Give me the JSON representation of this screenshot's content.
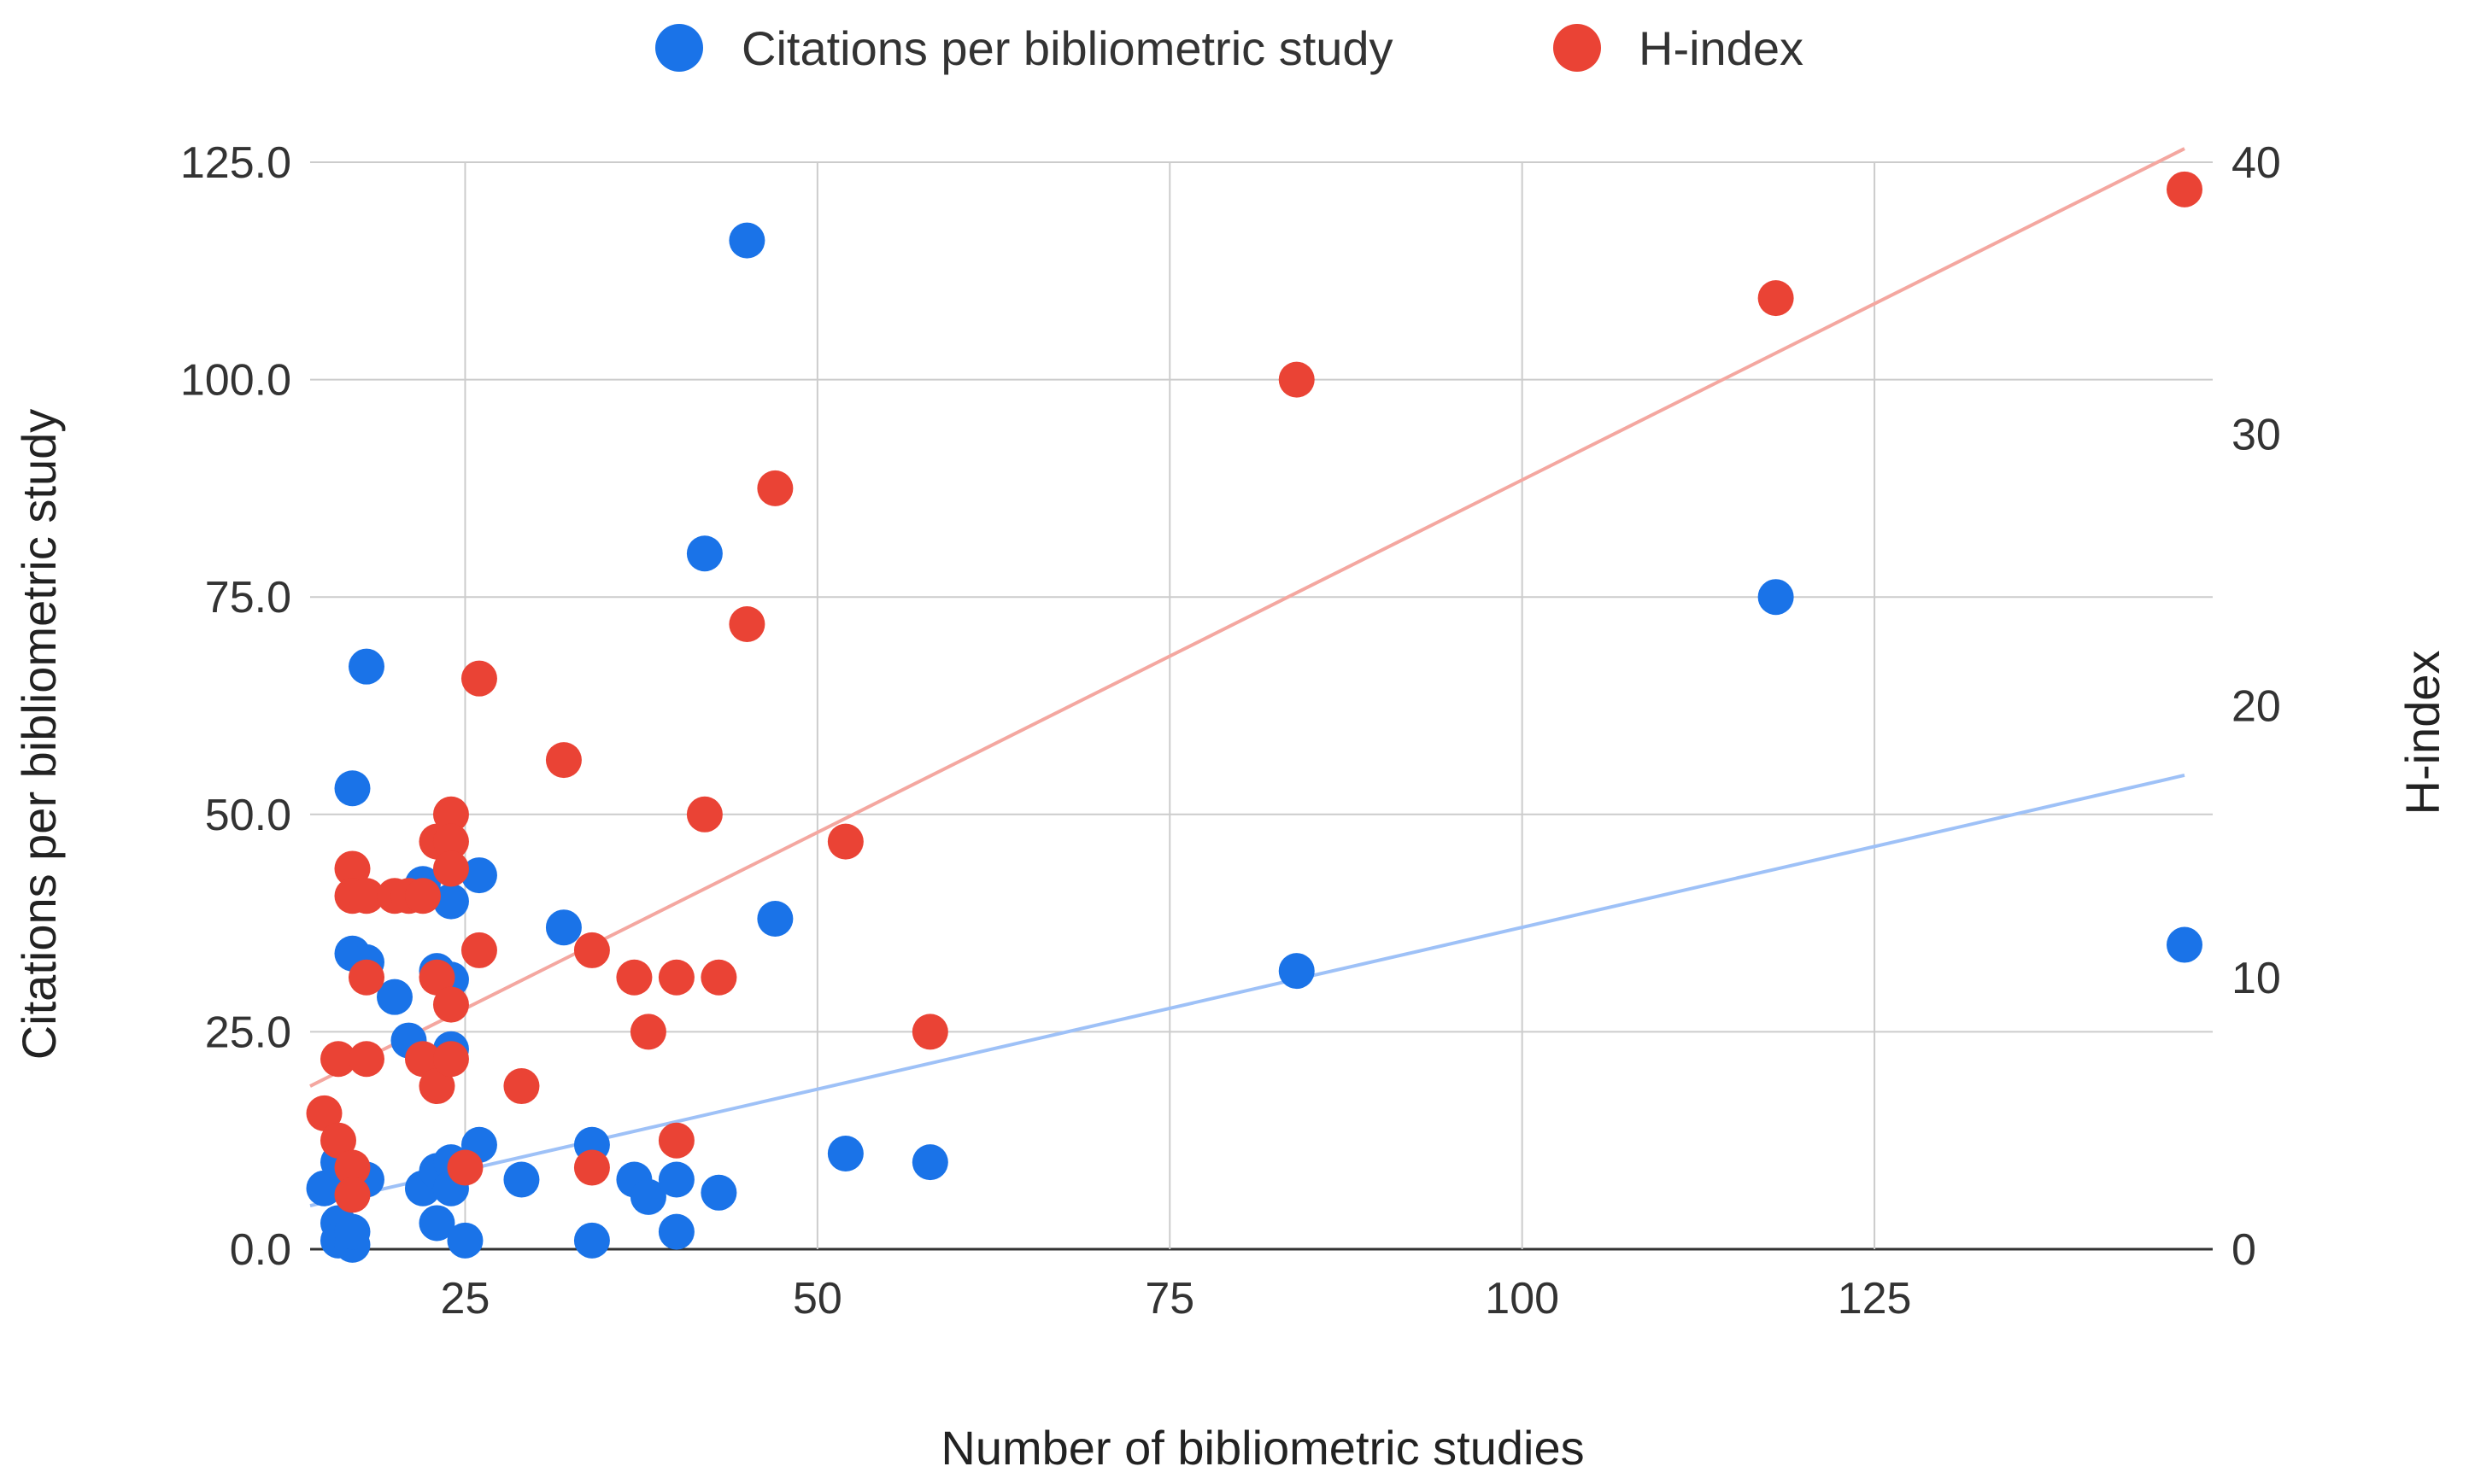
{
  "chart_data": {
    "type": "scatter",
    "title": "",
    "xlabel": "Number of bibliometric studies",
    "ylabel_left": "Citations per bibliometric study",
    "ylabel_right": "H-index",
    "xlim": [
      14,
      149
    ],
    "ylim_left": [
      0,
      125
    ],
    "ylim_right": [
      0,
      40
    ],
    "x_ticks": [
      "25",
      "50",
      "75",
      "100",
      "125"
    ],
    "x_tick_values": [
      25,
      50,
      75,
      100,
      125
    ],
    "y_left_ticks": [
      "0.0",
      "25.0",
      "50.0",
      "75.0",
      "100.0",
      "125.0"
    ],
    "y_left_tick_values": [
      0,
      25,
      50,
      75,
      100,
      125
    ],
    "y_right_ticks": [
      "0",
      "10",
      "20",
      "30",
      "40"
    ],
    "y_right_tick_values": [
      0,
      10,
      20,
      30,
      40
    ],
    "grid": true,
    "legend_position": "top",
    "series": [
      {
        "name": "Citations per bibliometric study",
        "axis": "left",
        "color": "#1a73e8",
        "trend_color": "#9ec1f7",
        "trendline": [
          [
            14,
            5
          ],
          [
            147,
            54.5
          ]
        ],
        "points": [
          [
            15,
            7
          ],
          [
            16,
            10
          ],
          [
            16,
            3
          ],
          [
            16,
            1
          ],
          [
            17,
            0.5
          ],
          [
            17,
            2
          ],
          [
            17,
            8
          ],
          [
            17,
            53
          ],
          [
            17,
            34
          ],
          [
            18,
            67
          ],
          [
            18,
            33
          ],
          [
            18,
            8
          ],
          [
            20,
            29
          ],
          [
            21,
            24
          ],
          [
            22,
            42
          ],
          [
            22,
            7
          ],
          [
            23,
            9
          ],
          [
            23,
            3
          ],
          [
            23,
            32
          ],
          [
            24,
            40
          ],
          [
            24,
            31
          ],
          [
            24,
            23
          ],
          [
            24,
            10
          ],
          [
            24,
            7
          ],
          [
            25,
            1
          ],
          [
            26,
            43
          ],
          [
            26,
            12
          ],
          [
            29,
            8
          ],
          [
            32,
            37
          ],
          [
            34,
            12
          ],
          [
            34,
            1
          ],
          [
            37,
            8
          ],
          [
            38,
            6
          ],
          [
            40,
            8
          ],
          [
            40,
            2
          ],
          [
            42,
            80
          ],
          [
            43,
            6.5
          ],
          [
            45,
            116
          ],
          [
            47,
            38
          ],
          [
            52,
            11
          ],
          [
            58,
            10
          ],
          [
            84,
            32
          ],
          [
            118,
            75
          ],
          [
            147,
            35
          ]
        ]
      },
      {
        "name": "H-index",
        "axis": "right",
        "color": "#ea4335",
        "trend_color": "#f4a7a0",
        "trendline": [
          [
            14,
            6
          ],
          [
            147,
            40.5
          ]
        ],
        "points": [
          [
            15,
            5
          ],
          [
            16,
            7
          ],
          [
            16,
            4
          ],
          [
            17,
            3
          ],
          [
            17,
            2
          ],
          [
            17,
            14
          ],
          [
            17,
            13
          ],
          [
            18,
            13
          ],
          [
            18,
            10
          ],
          [
            18,
            7
          ],
          [
            20,
            13
          ],
          [
            21,
            13
          ],
          [
            22,
            13
          ],
          [
            22,
            7
          ],
          [
            23,
            15
          ],
          [
            23,
            10
          ],
          [
            23,
            6
          ],
          [
            24,
            16
          ],
          [
            24,
            15
          ],
          [
            24,
            14
          ],
          [
            24,
            9
          ],
          [
            24,
            7
          ],
          [
            25,
            3
          ],
          [
            26,
            21
          ],
          [
            26,
            11
          ],
          [
            29,
            6
          ],
          [
            32,
            18
          ],
          [
            34,
            11
          ],
          [
            34,
            3
          ],
          [
            37,
            10
          ],
          [
            38,
            8
          ],
          [
            40,
            10
          ],
          [
            40,
            4
          ],
          [
            42,
            16
          ],
          [
            43,
            10
          ],
          [
            45,
            23
          ],
          [
            47,
            28
          ],
          [
            52,
            15
          ],
          [
            58,
            8
          ],
          [
            84,
            32
          ],
          [
            118,
            35
          ],
          [
            147,
            39
          ]
        ]
      }
    ]
  }
}
